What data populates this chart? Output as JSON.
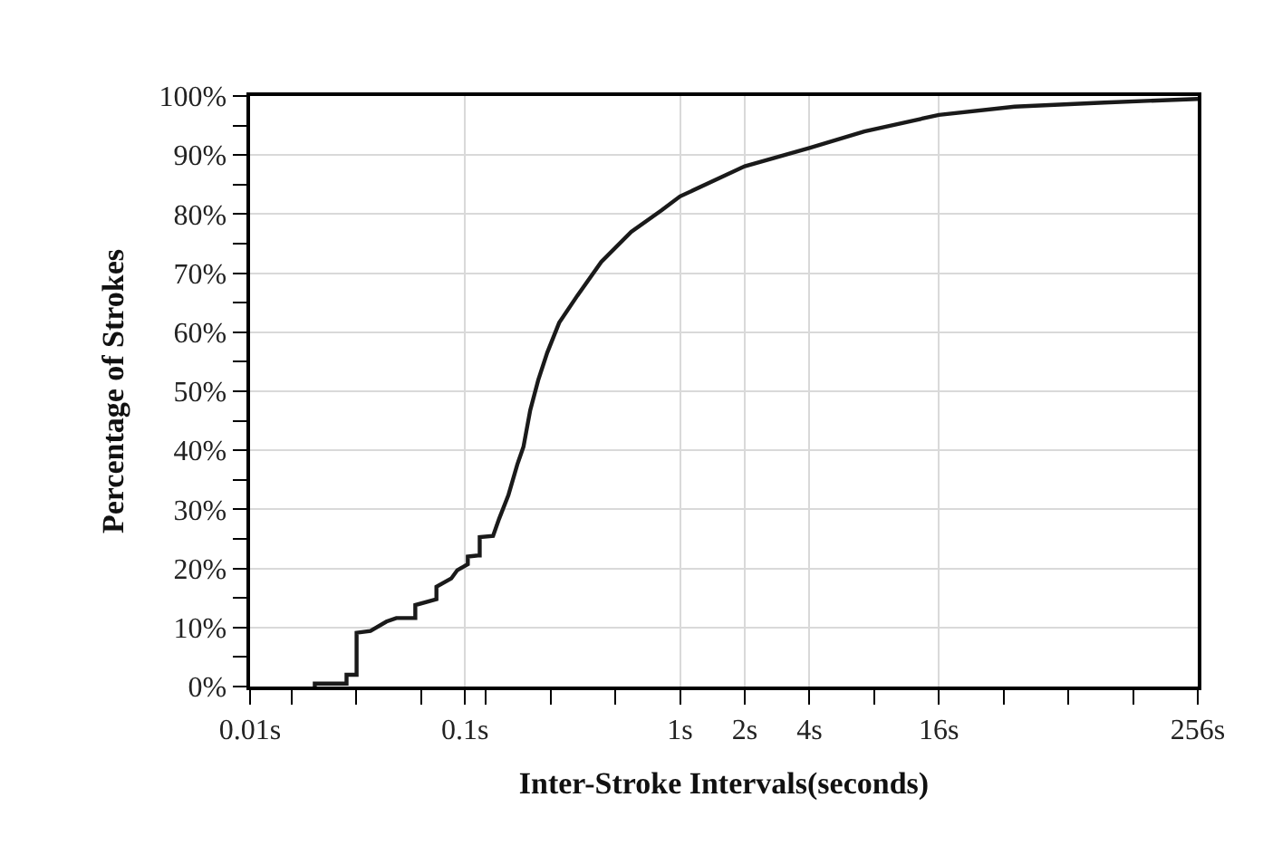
{
  "chart_data": {
    "type": "line",
    "xlabel": "Inter-Stroke Intervals(seconds)",
    "ylabel": "Percentage of Strokes",
    "log": "x",
    "grid": true,
    "marker": "none",
    "line_style": "solid",
    "xlim": [
      0.01,
      256
    ],
    "ylim": [
      0,
      100
    ],
    "xticks": [
      {
        "value": 0.01,
        "label": "0.01s"
      },
      {
        "value": 0.015625,
        "label": null
      },
      {
        "value": 0.03125,
        "label": null
      },
      {
        "value": 0.0625,
        "label": null
      },
      {
        "value": 0.1,
        "label": "0.1s"
      },
      {
        "value": 0.125,
        "label": null
      },
      {
        "value": 0.25,
        "label": null
      },
      {
        "value": 0.5,
        "label": null
      },
      {
        "value": 1,
        "label": "1s"
      },
      {
        "value": 2,
        "label": "2s"
      },
      {
        "value": 4,
        "label": "4s"
      },
      {
        "value": 8,
        "label": null
      },
      {
        "value": 16,
        "label": "16s"
      },
      {
        "value": 32,
        "label": null
      },
      {
        "value": 64,
        "label": null
      },
      {
        "value": 128,
        "label": null
      },
      {
        "value": 256,
        "label": "256s"
      }
    ],
    "yticks": [
      {
        "value": 0,
        "label": "0%"
      },
      {
        "value": 5,
        "label": null
      },
      {
        "value": 10,
        "label": "10%"
      },
      {
        "value": 15,
        "label": null
      },
      {
        "value": 20,
        "label": "20%"
      },
      {
        "value": 25,
        "label": null
      },
      {
        "value": 30,
        "label": "30%"
      },
      {
        "value": 35,
        "label": null
      },
      {
        "value": 40,
        "label": "40%"
      },
      {
        "value": 45,
        "label": null
      },
      {
        "value": 50,
        "label": "50%"
      },
      {
        "value": 55,
        "label": null
      },
      {
        "value": 60,
        "label": "60%"
      },
      {
        "value": 65,
        "label": null
      },
      {
        "value": 70,
        "label": "70%"
      },
      {
        "value": 75,
        "label": null
      },
      {
        "value": 80,
        "label": "80%"
      },
      {
        "value": 85,
        "label": null
      },
      {
        "value": 90,
        "label": "90%"
      },
      {
        "value": 95,
        "label": null
      },
      {
        "value": 100,
        "label": "100%"
      }
    ],
    "series": [
      {
        "color": "#1a1a1a",
        "x": [
          0.0197,
          0.02,
          0.02,
          0.0281,
          0.0281,
          0.0313,
          0.0313,
          0.0363,
          0.0363,
          0.0431,
          0.0431,
          0.0479,
          0.0587,
          0.0587,
          0.0736,
          0.0736,
          0.0863,
          0.092,
          0.103,
          0.103,
          0.115,
          0.117,
          0.117,
          0.135,
          0.144,
          0.159,
          0.175,
          0.187,
          0.201,
          0.219,
          0.241,
          0.274,
          0.333,
          0.43,
          0.593,
          0.817,
          1.0,
          2.0,
          4.0,
          7.2,
          16,
          36,
          94,
          256
        ],
        "values": [
          0,
          0,
          0.5,
          0.5,
          2.0,
          2.0,
          9.1,
          9.4,
          9.4,
          11.0,
          11.0,
          11.6,
          11.6,
          13.8,
          14.8,
          16.9,
          18.3,
          19.7,
          20.7,
          22.0,
          22.2,
          22.2,
          25.3,
          25.5,
          28.4,
          32.4,
          37.6,
          40.6,
          46.8,
          51.9,
          56.5,
          61.6,
          66.2,
          71.9,
          77.0,
          80.6,
          83.0,
          88.1,
          91.2,
          94.0,
          96.8,
          98.2,
          98.9,
          99.5
        ]
      }
    ]
  }
}
